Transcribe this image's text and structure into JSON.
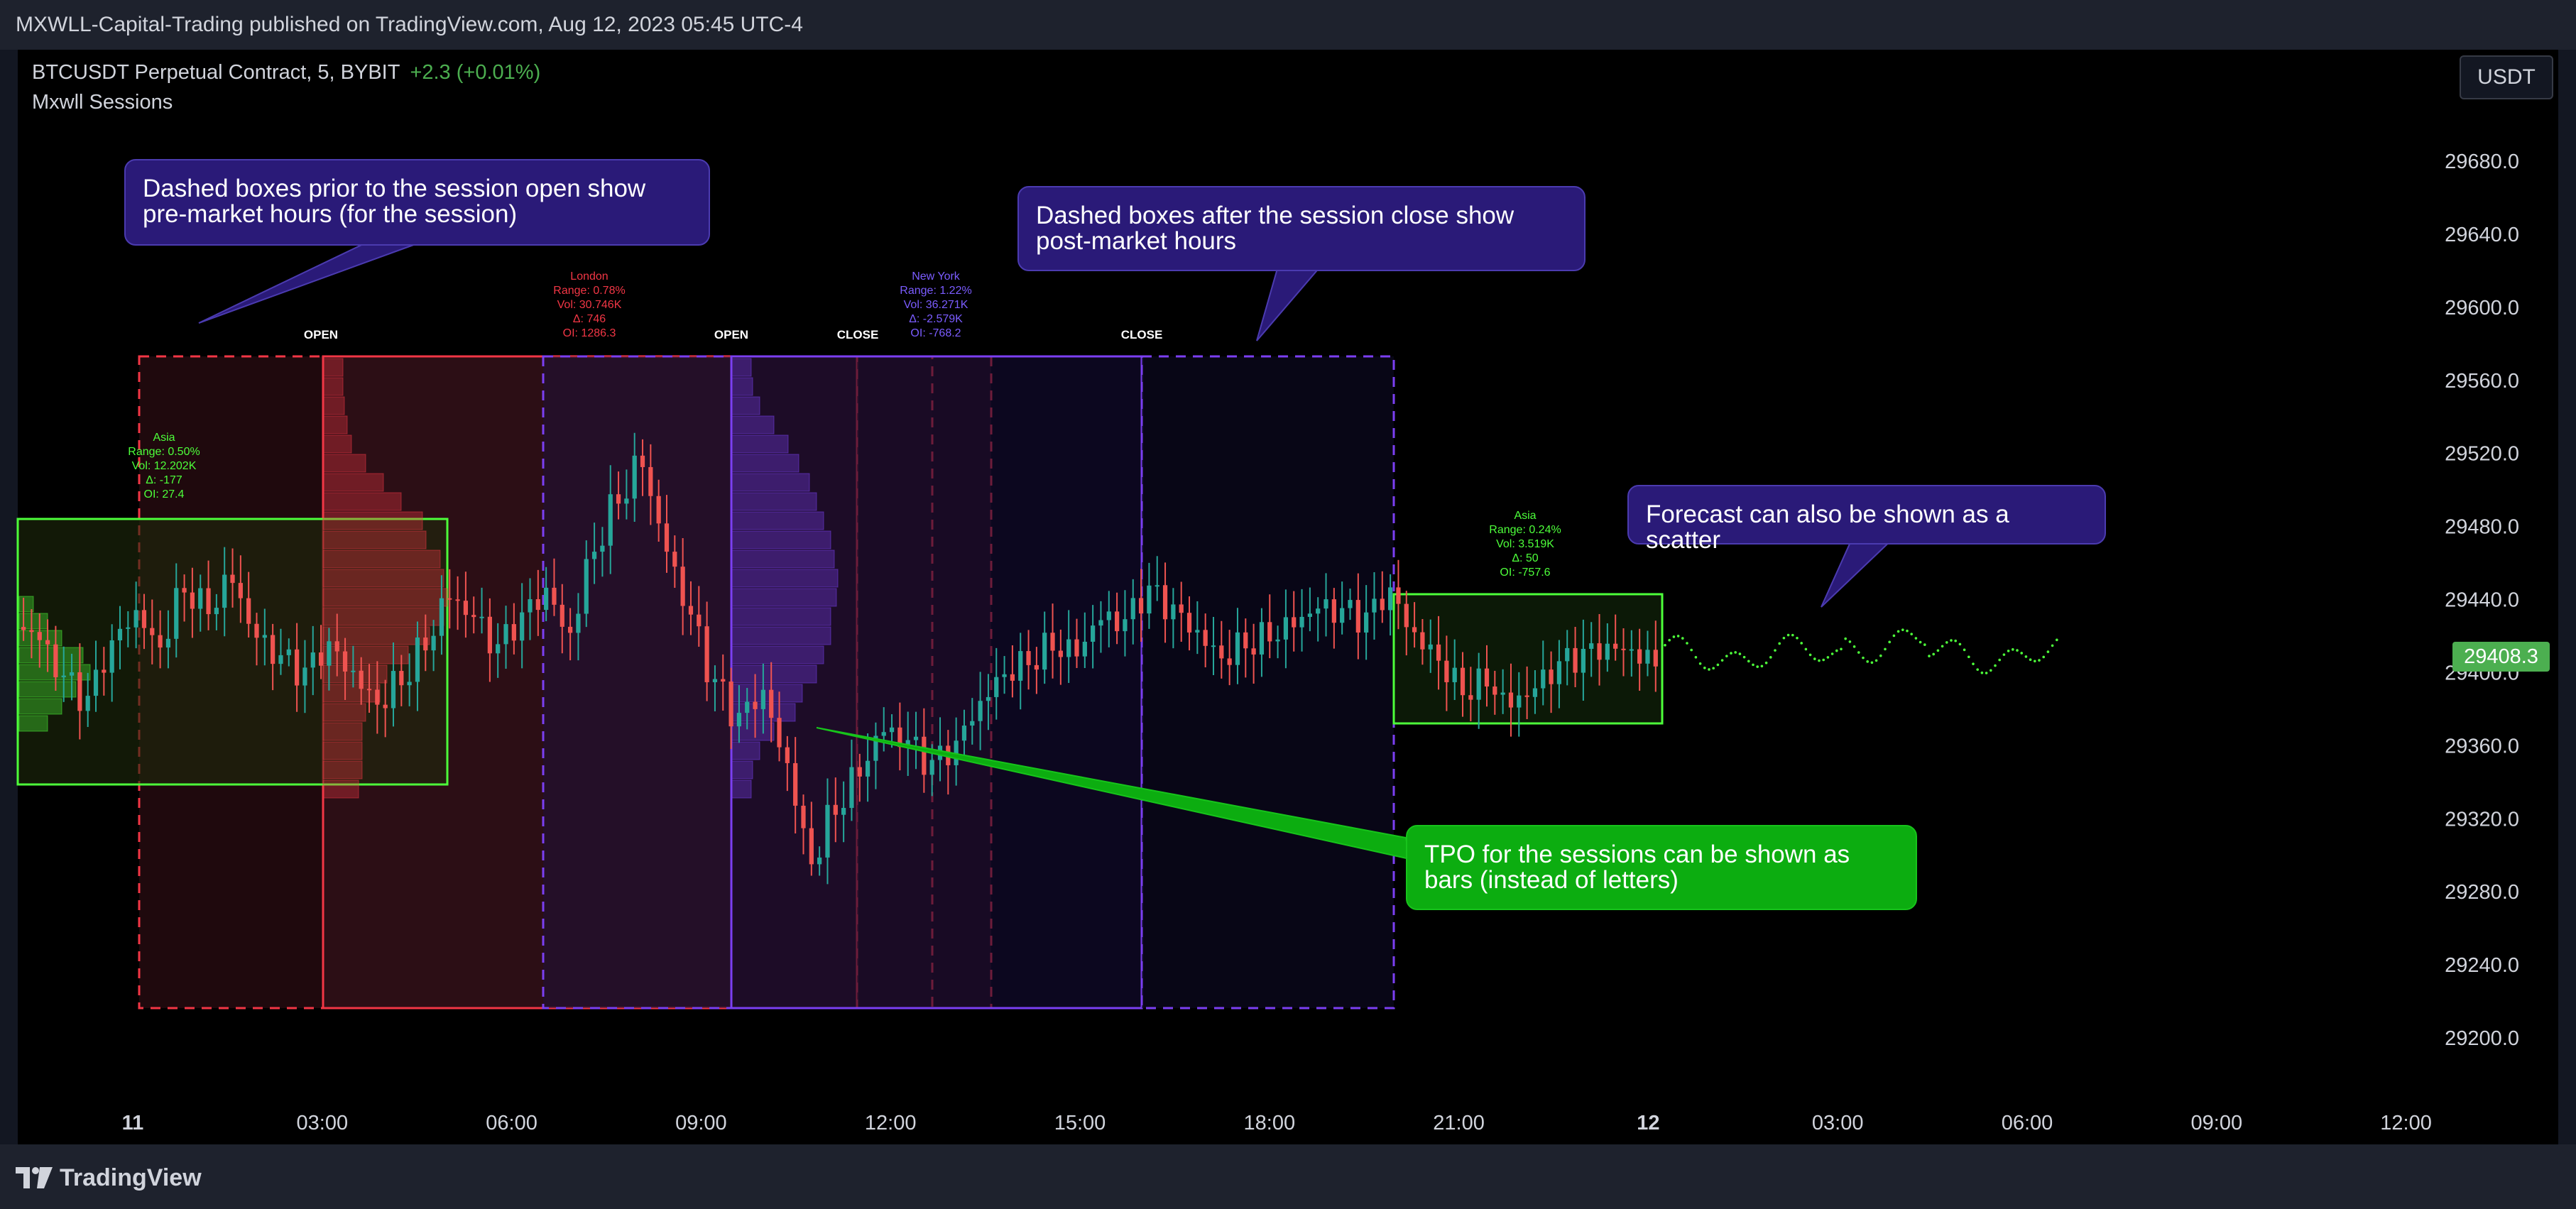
{
  "header": {
    "title": "MXWLL-Capital-Trading published on TradingView.com, Aug 12, 2023 05:45 UTC-4"
  },
  "legend": {
    "symbol": "BTCUSDT Perpetual Contract, 5, BYBIT",
    "change": "+2.3 (+0.01%)",
    "indicator": "Mxwll Sessions"
  },
  "currency_button": "USDT",
  "price_axis": {
    "ticks": [
      "29680.0",
      "29640.0",
      "29600.0",
      "29560.0",
      "29520.0",
      "29480.0",
      "29440.0",
      "29400.0",
      "29360.0",
      "29320.0",
      "29280.0",
      "29240.0",
      "29200.0"
    ],
    "current_price": "29408.3"
  },
  "time_axis": {
    "ticks": [
      "11",
      "03:00",
      "06:00",
      "09:00",
      "12:00",
      "15:00",
      "18:00",
      "21:00",
      "12",
      "03:00",
      "06:00",
      "09:00",
      "12:00"
    ]
  },
  "session_markers": {
    "london_open": "OPEN",
    "ny_open": "OPEN",
    "london_close": "CLOSE",
    "ny_close": "CLOSE"
  },
  "sessions": {
    "asia1": [
      "Asia",
      "Range: 0.50%",
      "Vol: 12.202K",
      "Δ: -177",
      "OI: 27.4"
    ],
    "london": [
      "London",
      "Range: 0.78%",
      "Vol: 30.746K",
      "Δ: 746",
      "OI: 1286.3"
    ],
    "newyork": [
      "New York",
      "Range: 1.22%",
      "Vol: 36.271K",
      "Δ: -2.579K",
      "OI: -768.2"
    ],
    "asia2": [
      "Asia",
      "Range: 0.24%",
      "Vol: 3.519K",
      "Δ: 50",
      "OI: -757.6"
    ]
  },
  "callouts": {
    "premarket": "Dashed boxes prior to the session open show pre-market hours (for the session)",
    "postmarket": "Dashed boxes after the session close show post-market hours",
    "forecast": "Forecast can also be shown as a scatter",
    "tpo": "TPO for the sessions can be shown as bars (instead of letters)"
  },
  "colors": {
    "london": "#f23645",
    "newyork": "#7b3ff2",
    "asia": "#4dff3a",
    "up": "#26a69a",
    "down": "#ef5350",
    "price_tag": "#4caf50"
  },
  "footer": {
    "brand": "TradingView"
  },
  "chart_data": {
    "type": "candlestick",
    "x_range": [
      "11 00:00",
      "12 12:00"
    ],
    "ylim": [
      29200,
      29680
    ],
    "close": [
      29420,
      29395,
      29380,
      29410,
      29430,
      29415,
      29450,
      29440,
      29455,
      29420,
      29405,
      29395,
      29410,
      29398,
      29385,
      29400,
      29420,
      29445,
      29430,
      29410,
      29425,
      29440,
      29420,
      29470,
      29500,
      29520,
      29470,
      29430,
      29390,
      29370,
      29385,
      29350,
      29300,
      29330,
      29350,
      29370,
      29360,
      29345,
      29355,
      29380,
      29400,
      29410,
      29420,
      29415,
      29430,
      29425,
      29440,
      29430,
      29420,
      29410,
      29420,
      29425,
      29430,
      29435,
      29430,
      29425,
      29440,
      29420,
      29410,
      29395,
      29400,
      29385,
      29390,
      29400,
      29405,
      29410,
      29412,
      29408
    ]
  }
}
